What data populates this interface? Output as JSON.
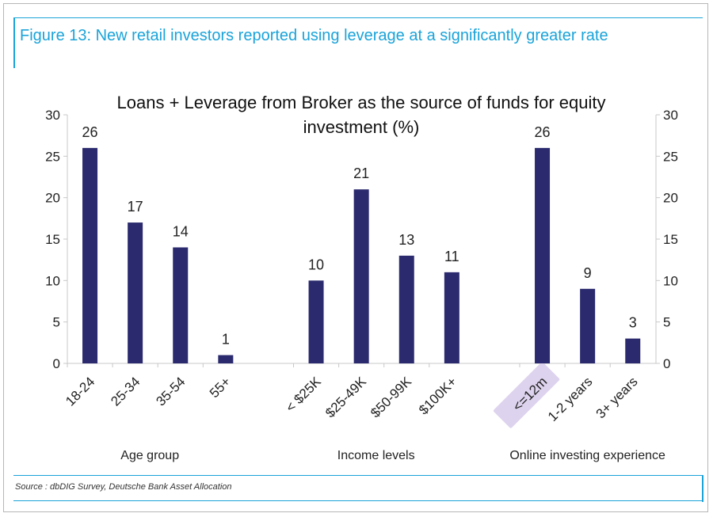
{
  "figure": {
    "title": "Figure 13: New retail investors reported using leverage at a significantly greater rate",
    "source": "Source : dbDIG Survey, Deutsche Bank Asset Allocation"
  },
  "colors": {
    "bar": "#2b2a6e",
    "accent": "#1aa3d9",
    "highlight": "#ddd3ee"
  },
  "chart_data": {
    "type": "bar",
    "title_lines": [
      "Loans + Leverage from Broker as the source of funds for equity",
      "investment (%)"
    ],
    "ylim": [
      0,
      30
    ],
    "yticks": [
      0,
      5,
      10,
      15,
      20,
      25,
      30
    ],
    "grid": false,
    "groups": [
      {
        "label": "Age group",
        "categories": [
          "18-24",
          "25-34",
          "35-54",
          "55+"
        ],
        "values": [
          26,
          17,
          14,
          1
        ],
        "value_labels": [
          "26",
          "17",
          "14",
          "1"
        ]
      },
      {
        "label": "Income levels",
        "categories": [
          "< $25K",
          "$25-49K",
          "$50-99K",
          "$100K+"
        ],
        "values": [
          10,
          21,
          13,
          11
        ],
        "value_labels": [
          "10",
          "21",
          "13",
          "11"
        ]
      },
      {
        "label": "Online investing experience",
        "categories": [
          "<=12m",
          "1-2 years",
          "3+ years"
        ],
        "values": [
          26,
          9,
          3
        ],
        "value_labels": [
          "26",
          "9",
          "3"
        ],
        "highlighted_category": "<=12m"
      }
    ]
  }
}
